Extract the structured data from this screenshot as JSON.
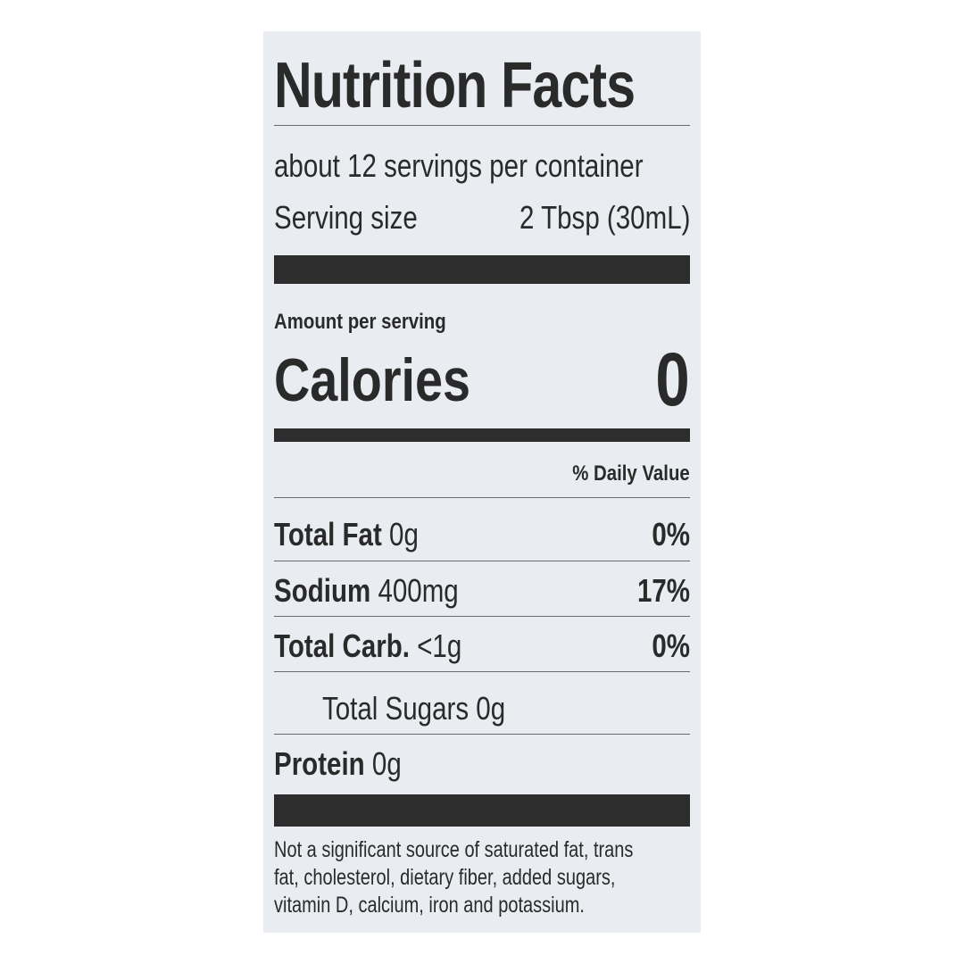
{
  "label": {
    "title": "Nutrition Facts",
    "servings_per_container": "about 12 servings per container",
    "serving_size_label": "Serving size",
    "serving_size_value": "2 Tbsp (30mL)",
    "amount_per_serving": "Amount per serving",
    "calories_label": "Calories",
    "calories_value": "0",
    "daily_value_header": "% Daily Value",
    "nutrients": [
      {
        "name": "Total Fat",
        "amount": "0g",
        "dv": "0%"
      },
      {
        "name": "Sodium",
        "amount": "400mg",
        "dv": "17%"
      },
      {
        "name": "Total Carb.",
        "amount": "<1g",
        "dv": "0%"
      },
      {
        "name": "Total Sugars",
        "amount": "0g",
        "dv": ""
      },
      {
        "name": "Protein",
        "amount": "0g",
        "dv": ""
      }
    ],
    "footnote": [
      "Not a significant source of saturated fat, trans",
      "fat, cholesterol, dietary fiber, added sugars,",
      "vitamin D, calcium, iron and potassium."
    ]
  },
  "colors": {
    "background": "#e9edf1",
    "ink": "#2b2a2a"
  }
}
